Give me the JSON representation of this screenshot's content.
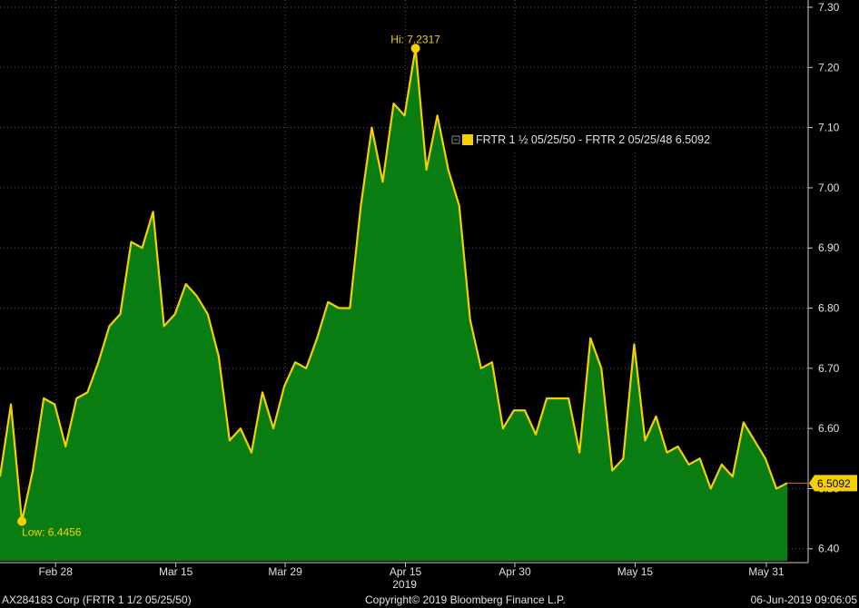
{
  "chart_data": {
    "type": "area",
    "series": [
      {
        "name": "FRTR 1 ½ 05/25/50 - FRTR 2 05/25/48",
        "color": "#f5d000",
        "fill": "#0a7d12",
        "values": [
          6.52,
          6.64,
          6.4456,
          6.53,
          6.65,
          6.64,
          6.57,
          6.65,
          6.66,
          6.71,
          6.77,
          6.79,
          6.91,
          6.9,
          6.96,
          6.77,
          6.79,
          6.84,
          6.82,
          6.79,
          6.72,
          6.58,
          6.6,
          6.56,
          6.66,
          6.6,
          6.67,
          6.71,
          6.7,
          6.75,
          6.81,
          6.8,
          6.8,
          6.97,
          7.1,
          7.01,
          7.14,
          7.12,
          7.2317,
          7.03,
          7.12,
          7.03,
          6.97,
          6.78,
          6.7,
          6.71,
          6.6,
          6.63,
          6.63,
          6.59,
          6.65,
          6.65,
          6.65,
          6.56,
          6.75,
          6.7,
          6.53,
          6.55,
          6.74,
          6.58,
          6.62,
          6.56,
          6.57,
          6.54,
          6.55,
          6.5,
          6.54,
          6.52,
          6.61,
          6.58,
          6.55,
          6.5,
          6.5092
        ]
      }
    ],
    "x_ticks": [
      {
        "label": "Feb 28",
        "index": 5
      },
      {
        "label": "Mar 15",
        "index": 16
      },
      {
        "label": "Mar 29",
        "index": 26
      },
      {
        "label": "Apr 15",
        "index": 37
      },
      {
        "label": "Apr 30",
        "index": 47
      },
      {
        "label": "May 15",
        "index": 58
      },
      {
        "label": "May 31",
        "index": 70
      }
    ],
    "year_label": {
      "label": "2019",
      "index": 38
    },
    "y_ticks": [
      "7.30",
      "7.20",
      "7.10",
      "7.00",
      "6.90",
      "6.80",
      "6.70",
      "6.60",
      "6.50",
      "6.40"
    ],
    "ylim": [
      6.38,
      7.3
    ],
    "high": {
      "label": "Hi: 7.2317",
      "index": 38,
      "value": 7.2317
    },
    "low": {
      "label": "Low: 6.4456",
      "index": 2,
      "value": 6.4456
    },
    "last": {
      "label": "6.5092",
      "value": 6.5092
    },
    "legend": {
      "text": "FRTR 1 ½ 05/25/50 - FRTR 2 05/25/48 6.5092",
      "placement": "top-center"
    },
    "grid": true
  },
  "footer": {
    "left": "AX284183 Corp (FRTR 1 1/2 05/25/50)",
    "center": "Copyright© 2019 Bloomberg Finance L.P.",
    "right": "06-Jun-2019 09:06:05"
  }
}
